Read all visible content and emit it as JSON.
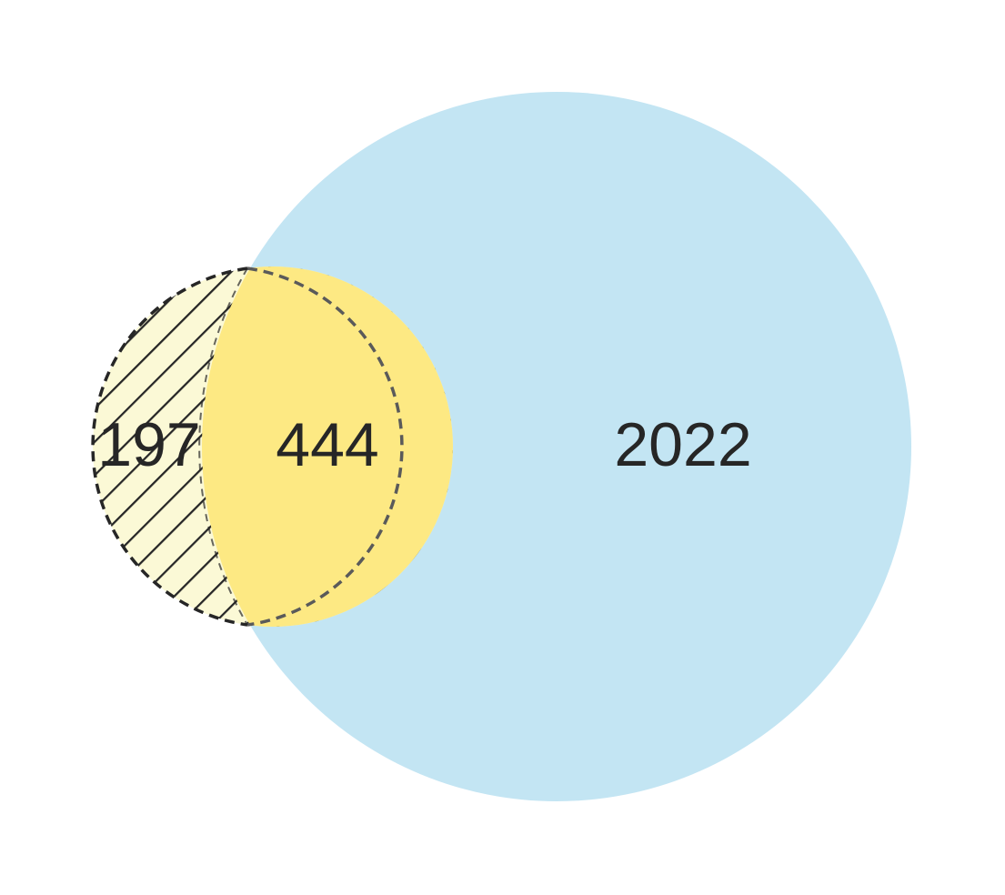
{
  "venn": {
    "regions": [
      {
        "id": "left-only",
        "label": "197",
        "fill": "#FBF9D6",
        "pattern": "diagonal-hatch"
      },
      {
        "id": "intersection",
        "label": "444",
        "fill": "#FDE983"
      },
      {
        "id": "right-only",
        "label": "2022",
        "fill": "#C3E5F3"
      }
    ],
    "colors": {
      "small_set_fill": "#FBF9D6",
      "overlap_fill": "#FDE983",
      "large_set_fill": "#C3E5F3",
      "outline": "#262626"
    }
  }
}
